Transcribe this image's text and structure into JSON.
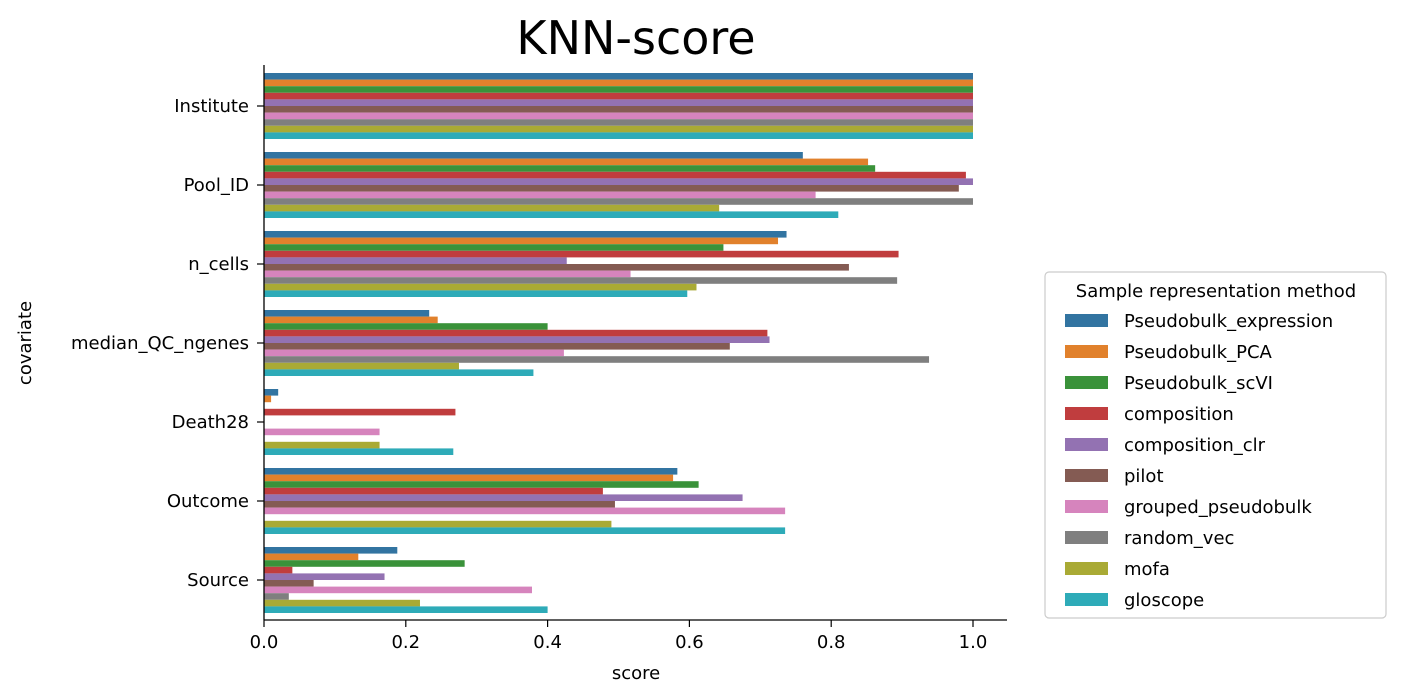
{
  "chart_data": {
    "type": "bar",
    "orientation": "horizontal",
    "title": "KNN-score",
    "xlabel": "score",
    "ylabel": "covariate",
    "xlim": [
      0.0,
      1.05
    ],
    "xticks": [
      "0.0",
      "0.2",
      "0.4",
      "0.6",
      "0.8",
      "1.0"
    ],
    "grid": false,
    "legend_position": "right",
    "legend_title": "Sample representation method",
    "categories": [
      "Institute",
      "Pool_ID",
      "n_cells",
      "median_QC_ngenes",
      "Death28",
      "Outcome",
      "Source"
    ],
    "series": [
      {
        "name": "Pseudobulk_expression",
        "color": "#3274a1",
        "values": [
          1.0,
          0.76,
          0.737,
          0.233,
          0.02,
          0.583,
          0.188
        ]
      },
      {
        "name": "Pseudobulk_PCA",
        "color": "#e1812c",
        "values": [
          1.0,
          0.852,
          0.725,
          0.245,
          0.01,
          0.577,
          0.133
        ]
      },
      {
        "name": "Pseudobulk_scVI",
        "color": "#3a923a",
        "values": [
          1.0,
          0.862,
          0.648,
          0.4,
          0.0,
          0.613,
          0.283
        ]
      },
      {
        "name": "composition",
        "color": "#c03d3e",
        "values": [
          1.0,
          0.99,
          0.895,
          0.71,
          0.27,
          0.478,
          0.04
        ]
      },
      {
        "name": "composition_clr",
        "color": "#9372b2",
        "values": [
          1.0,
          1.0,
          0.427,
          0.713,
          0.0,
          0.675,
          0.17
        ]
      },
      {
        "name": "pilot",
        "color": "#845b53",
        "values": [
          1.0,
          0.98,
          0.825,
          0.657,
          0.0,
          0.495,
          0.07
        ]
      },
      {
        "name": "grouped_pseudobulk",
        "color": "#d684bd",
        "values": [
          1.0,
          0.778,
          0.517,
          0.423,
          0.163,
          0.735,
          0.378
        ]
      },
      {
        "name": "random_vec",
        "color": "#7f7f7f",
        "values": [
          1.0,
          1.0,
          0.893,
          0.938,
          0.0,
          0.0,
          0.035
        ]
      },
      {
        "name": "mofa",
        "color": "#a9aa35",
        "values": [
          1.0,
          0.642,
          0.61,
          0.275,
          0.163,
          0.49,
          0.22
        ]
      },
      {
        "name": "gloscope",
        "color": "#2eabb8",
        "values": [
          1.0,
          0.81,
          0.597,
          0.38,
          0.267,
          0.735,
          0.4
        ]
      }
    ]
  }
}
